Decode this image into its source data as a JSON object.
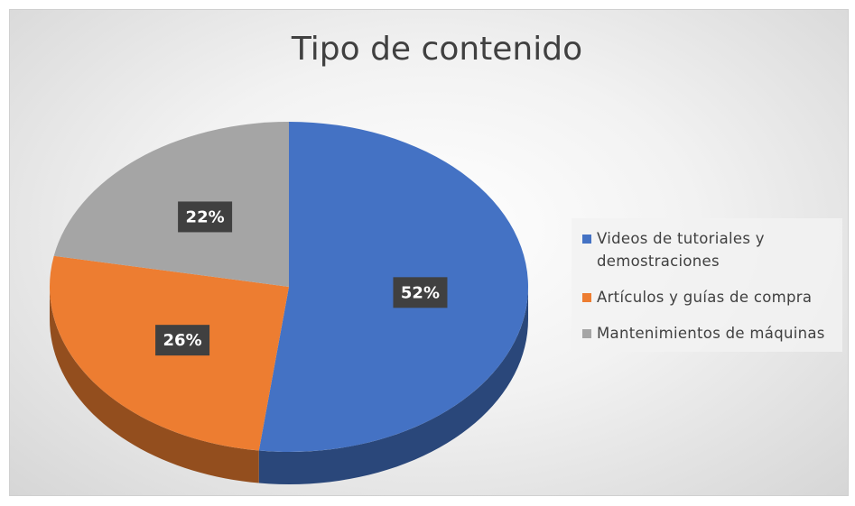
{
  "chart_data": {
    "type": "pie",
    "title": "Tipo de contenido",
    "categories": [
      "Videos de tutoriales y demostraciones",
      "Artículos y guías de compra",
      "Mantenimientos de máquinas"
    ],
    "values": [
      52,
      26,
      22
    ],
    "value_labels": [
      "52%",
      "26%",
      "22%"
    ],
    "colors": [
      "#4472c4",
      "#ed7d31",
      "#a5a5a5"
    ],
    "legend": "right"
  }
}
